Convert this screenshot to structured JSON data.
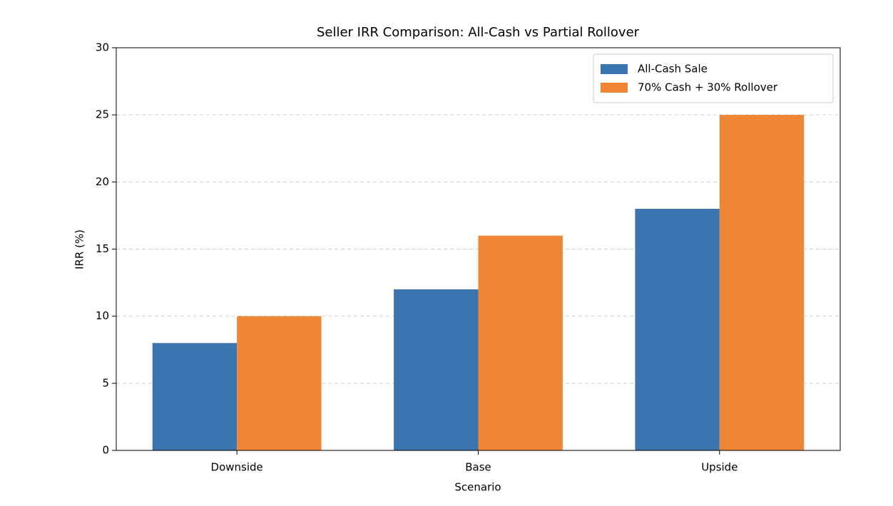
{
  "chart_data": {
    "type": "bar",
    "title": "Seller IRR Comparison: All-Cash vs Partial Rollover",
    "x_label": "Scenario",
    "y_label": "IRR (%)",
    "categories": [
      "Downside",
      "Base",
      "Upside"
    ],
    "series": [
      {
        "name": "All-Cash Sale",
        "color": "#3b75af",
        "values": [
          8,
          12,
          18
        ]
      },
      {
        "name": "70% Cash + 30% Rollover",
        "color": "#ef8636",
        "values": [
          10,
          16,
          25
        ]
      }
    ],
    "ylim": [
      0,
      30
    ],
    "yticks": [
      0,
      5,
      10,
      15,
      20,
      25,
      30
    ],
    "grid": true,
    "legend": "upper right"
  }
}
